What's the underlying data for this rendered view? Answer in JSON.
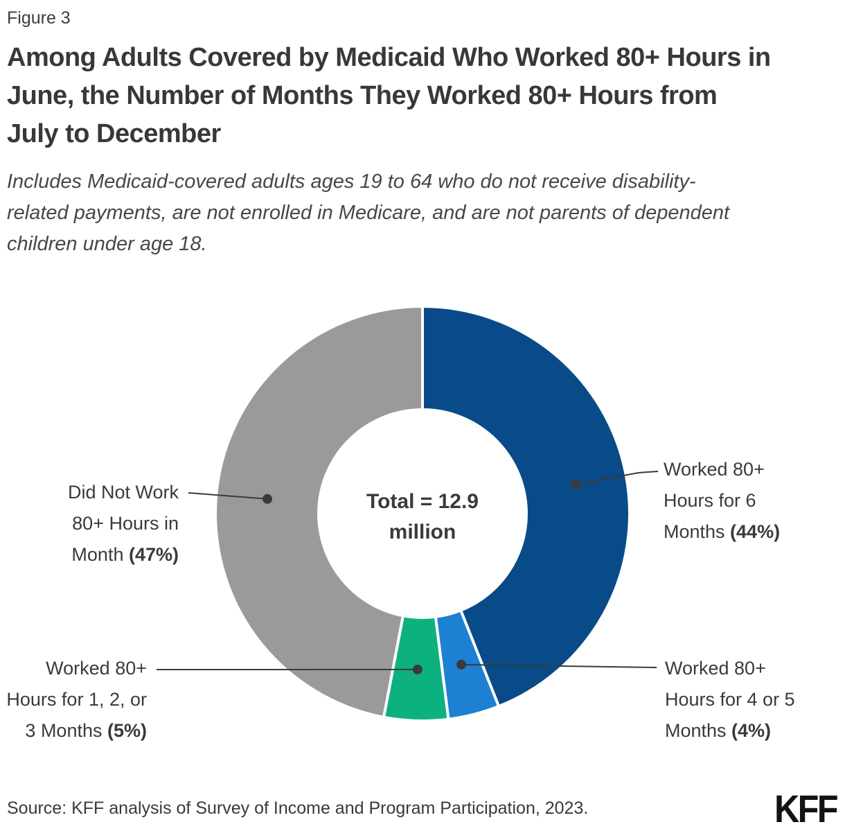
{
  "page": {
    "figure_label": "Figure 3",
    "title_lines": [
      "Among Adults Covered by Medicaid Who Worked 80+ Hours in",
      "June, the Number of Months They Worked 80+ Hours from",
      "July to December"
    ],
    "subtitle_lines": [
      "Includes Medicaid-covered adults ages 19 to 64 who do not receive disability-",
      "related payments, are not enrolled in Medicare, and are not parents of dependent",
      "children under age 18."
    ],
    "source": "Source: KFF analysis of Survey of Income and Program Participation, 2023.",
    "logo_text": "KFF"
  },
  "chart_data": {
    "type": "pie",
    "subtype": "donut",
    "title": "Among Adults Covered by Medicaid Who Worked 80+ Hours in June, the Number of Months They Worked 80+ Hours from July to December",
    "total": "12.9 million",
    "center_label_lines": [
      "Total = 12.9",
      "million"
    ],
    "unit": "percent",
    "categories": [
      "Worked 80+ Hours for 6 Months",
      "Worked 80+ Hours for 4 or 5 Months",
      "Worked 80+ Hours for 1, 2, or 3 Months",
      "Did Not Work 80+ Hours in Month"
    ],
    "values": [
      44,
      4,
      5,
      47
    ],
    "colors": [
      "#084b88",
      "#1e80d3",
      "#0db180",
      "#9a9a9a"
    ],
    "leader_color": "#3a3a3a",
    "slices": [
      {
        "name": "worked-6-months",
        "label_lines": [
          "Worked 80+",
          "Hours for 6",
          "Months"
        ],
        "pct": "(44%)",
        "value": 44,
        "color": "#084b88"
      },
      {
        "name": "worked-4-or-5-months",
        "label_lines": [
          "Worked 80+",
          "Hours for 4 or 5",
          "Months"
        ],
        "pct": "(4%)",
        "value": 4,
        "color": "#1e80d3"
      },
      {
        "name": "worked-1-2-or-3-months",
        "label_lines": [
          "Worked 80+",
          "Hours for 1, 2, or",
          "3 Months"
        ],
        "pct": "(5%)",
        "value": 5,
        "color": "#0db180"
      },
      {
        "name": "did-not-work-80-hours",
        "label_lines": [
          "Did Not Work",
          "80+ Hours in",
          "Month"
        ],
        "pct": "(47%)",
        "value": 47,
        "color": "#9a9a9a"
      }
    ]
  }
}
